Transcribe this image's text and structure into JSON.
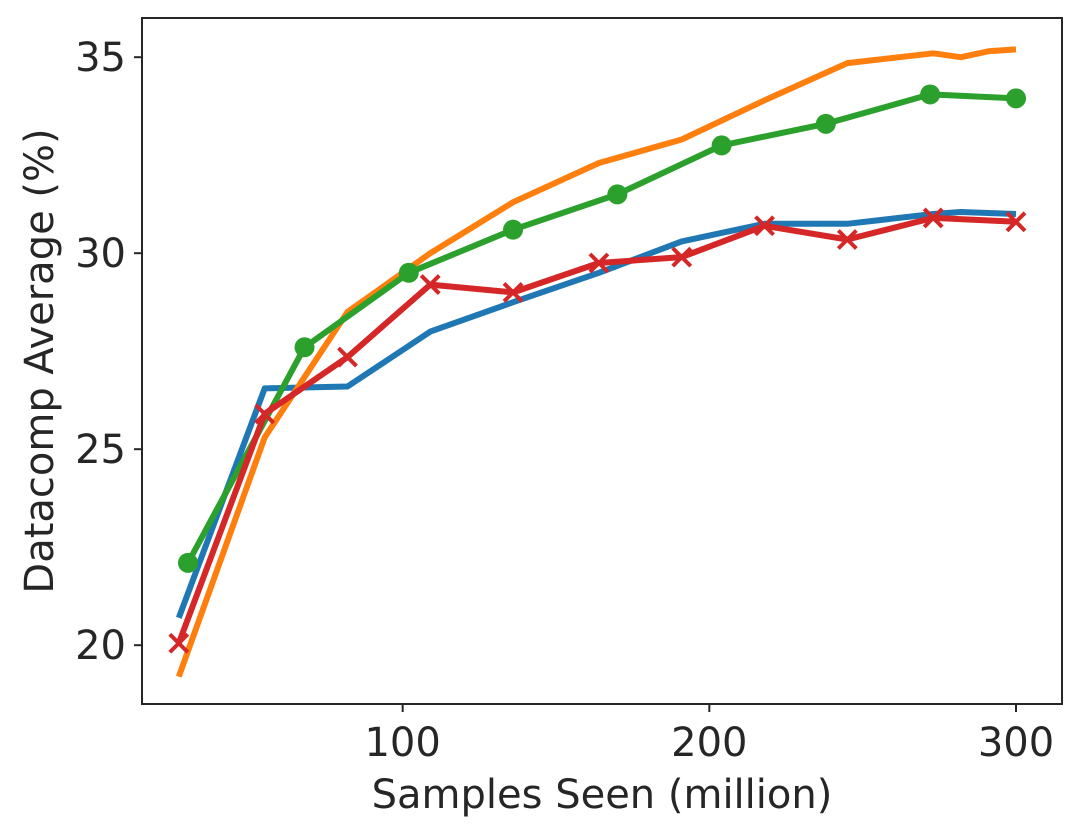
{
  "chart_data": {
    "type": "line",
    "title": "",
    "xlabel": "Samples Seen (million)",
    "ylabel": "Datacomp Average (%)",
    "xlim": [
      15,
      315
    ],
    "ylim": [
      18.5,
      36
    ],
    "x_ticks": [
      100,
      200,
      300
    ],
    "x_tick_labels": [
      "100",
      "200",
      "300"
    ],
    "y_ticks": [
      20,
      25,
      30,
      35
    ],
    "y_tick_labels": [
      "20",
      "25",
      "30",
      "35"
    ],
    "grid": false,
    "legend": "none",
    "series": [
      {
        "name": "blue",
        "color": "#1f77b4",
        "marker": "none",
        "x": [
          27,
          55,
          82,
          109,
          136,
          164,
          191,
          218,
          245,
          273,
          282,
          300
        ],
        "y": [
          20.7,
          26.55,
          26.6,
          28.0,
          28.75,
          29.5,
          30.3,
          30.75,
          30.75,
          31.0,
          31.05,
          31.0
        ]
      },
      {
        "name": "orange",
        "color": "#ff7f0e",
        "marker": "none",
        "x": [
          27,
          55,
          82,
          109,
          136,
          164,
          191,
          218,
          245,
          273,
          282,
          291,
          300
        ],
        "y": [
          19.2,
          25.3,
          28.5,
          30.0,
          31.3,
          32.3,
          32.9,
          33.9,
          34.85,
          35.1,
          35.0,
          35.15,
          35.2
        ]
      },
      {
        "name": "green",
        "color": "#2ca02c",
        "marker": "circle",
        "x": [
          30,
          68,
          102,
          136,
          170,
          204,
          238,
          272,
          300
        ],
        "y": [
          22.1,
          27.6,
          29.5,
          30.6,
          31.5,
          32.75,
          33.3,
          34.05,
          33.95
        ]
      },
      {
        "name": "red",
        "color": "#d62728",
        "marker": "x",
        "x": [
          27,
          55,
          82,
          109,
          136,
          164,
          191,
          218,
          245,
          273,
          300
        ],
        "y": [
          20.05,
          25.9,
          27.35,
          29.2,
          29.0,
          29.75,
          29.9,
          30.7,
          30.35,
          30.9,
          30.8
        ]
      }
    ]
  }
}
